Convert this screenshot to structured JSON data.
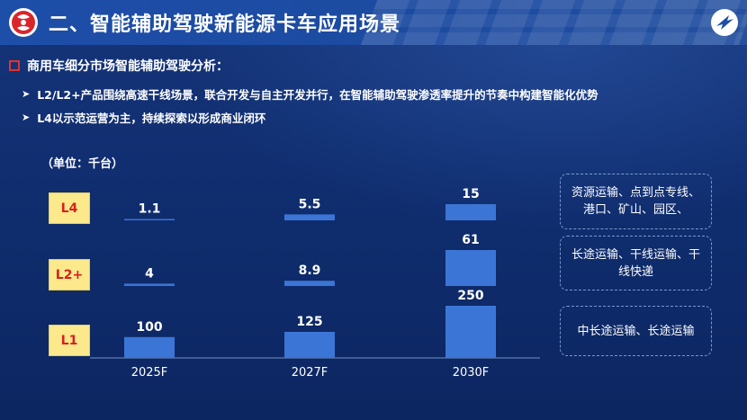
{
  "header": {
    "title": "二、智能辅助驾驶新能源卡车应用场景",
    "logo_left_icon": "brand-logo-icon",
    "logo_right_icon": "corporate-emblem-icon"
  },
  "section": {
    "heading": "商用车细分市场智能辅助驾驶分析：",
    "bullets": [
      "L2/L2+产品围绕高速干线场景，联合开发与自主开发并行，在智能辅助驾驶渗透率提升的节奏中构建智能化优势",
      "L4以示范运营为主，持续探索以形成商业闭环"
    ]
  },
  "chart_data": {
    "type": "bar",
    "unit_label": "（单位：千台）",
    "categories": [
      "2025F",
      "2027F",
      "2030F"
    ],
    "levels": [
      "L4",
      "L2+",
      "L1"
    ],
    "series": [
      {
        "name": "L4",
        "values": [
          1.1,
          5.5,
          15
        ],
        "labels": [
          "1.1",
          "5.5",
          "15"
        ]
      },
      {
        "name": "L2+",
        "values": [
          4,
          8.9,
          61
        ],
        "labels": [
          "4",
          "8.9",
          "61"
        ]
      },
      {
        "name": "L1",
        "values": [
          100,
          125,
          250
        ],
        "labels": [
          "100",
          "125",
          "250"
        ]
      }
    ],
    "bar_color": "#3b76d6",
    "label_color": "#ffffff",
    "level_box_color": "#fbe98b",
    "level_text_color": "#d7201e"
  },
  "applications": [
    "资源运输、点到点专线、港口、矿山、园区、",
    "长途运输、干线运输、干线快递",
    "中长途运输、长途运输"
  ]
}
